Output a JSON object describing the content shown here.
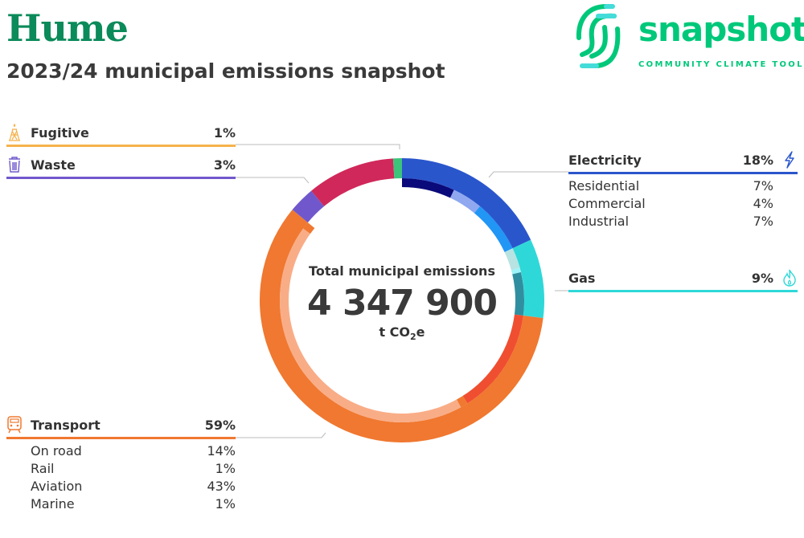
{
  "header": {
    "title": "Hume",
    "subtitle": "2023/24 municipal emissions snapshot"
  },
  "logo": {
    "word": "snapshot",
    "tagline": "COMMUNITY CLIMATE TOOL"
  },
  "center": {
    "label": "Total municipal emissions",
    "value": "4 347 900",
    "unit_prefix": "t CO",
    "unit_sub": "2",
    "unit_suffix": "e"
  },
  "colors": {
    "fugitive": "#f6b24c",
    "waste": "#7058cc",
    "electricity": "#2a56cc",
    "gas": "#2fd8d8",
    "transport": "#f07830",
    "other": "#d0285a",
    "connector": "#bbbbbb"
  },
  "chart_data": {
    "type": "pie",
    "title": "Total municipal emissions",
    "total": "4 347 900 t CO2e",
    "outer": [
      {
        "name": "Electricity",
        "value": 18,
        "color": "#2a56cc"
      },
      {
        "name": "Gas",
        "value": 9,
        "color": "#2fd8d8"
      },
      {
        "name": "Transport",
        "value": 59,
        "color": "#f07830"
      },
      {
        "name": "Waste",
        "value": 3,
        "color": "#7058cc"
      },
      {
        "name": "",
        "value": 10,
        "color": "#d0285a"
      },
      {
        "name": "Fugitive",
        "value": 1,
        "color": "#3cc47a"
      }
    ],
    "inner": [
      {
        "name": "Residential",
        "value": 7,
        "color": "#0a0a7a"
      },
      {
        "name": "Commercial",
        "value": 4,
        "color": "#8fa8f0"
      },
      {
        "name": "Industrial",
        "value": 7,
        "color": "#2196f5"
      },
      {
        "name": "",
        "value": 2.7,
        "color": "#b8e3e3"
      },
      {
        "name": "",
        "value": 0.6,
        "color": "#9ff4f8"
      },
      {
        "name": "",
        "value": 5.7,
        "color": "#2f8fa0"
      },
      {
        "name": "On road",
        "value": 14,
        "color": "#f04e30"
      },
      {
        "name": "Rail",
        "value": 1,
        "color": "#f07830"
      },
      {
        "name": "Aviation",
        "value": 43,
        "color": "#f9ad87"
      },
      {
        "name": "Marine",
        "value": 1,
        "color": "#f07830"
      }
    ]
  },
  "legend": {
    "fugitive": {
      "label": "Fugitive",
      "pct": "1%"
    },
    "waste": {
      "label": "Waste",
      "pct": "3%"
    },
    "electricity": {
      "label": "Electricity",
      "pct": "18%",
      "subs": [
        {
          "label": "Residential",
          "pct": "7%"
        },
        {
          "label": "Commercial",
          "pct": "4%"
        },
        {
          "label": "Industrial",
          "pct": "7%"
        }
      ]
    },
    "gas": {
      "label": "Gas",
      "pct": "9%"
    },
    "transport": {
      "label": "Transport",
      "pct": "59%",
      "subs": [
        {
          "label": "On road",
          "pct": "14%"
        },
        {
          "label": "Rail",
          "pct": "1%"
        },
        {
          "label": "Aviation",
          "pct": "43%"
        },
        {
          "label": "Marine",
          "pct": "1%"
        }
      ]
    }
  }
}
